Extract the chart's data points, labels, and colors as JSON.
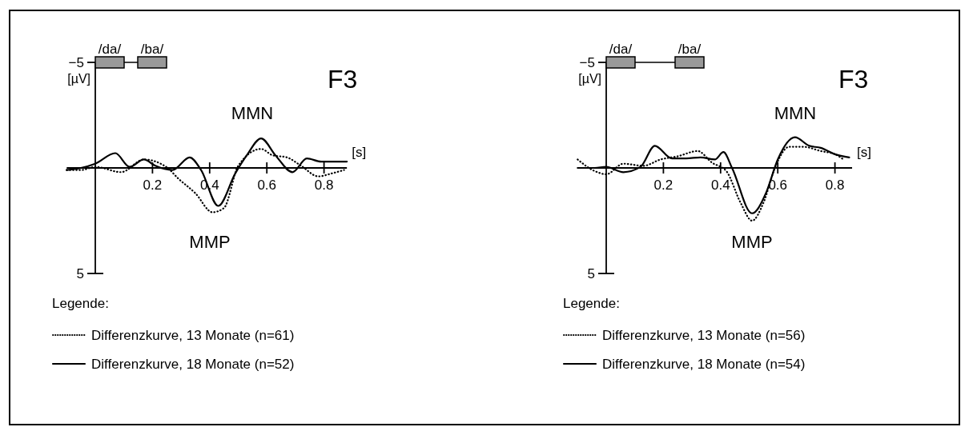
{
  "chart_data": [
    {
      "type": "line",
      "title": "F3",
      "xlabel": "[s]",
      "ylabel": "[µV]",
      "legend_title": "Legende:",
      "legend": "bottom",
      "xlim": [
        -0.1,
        0.88
      ],
      "xticks": [
        0.2,
        0.4,
        0.6,
        0.8
      ],
      "ylim": [
        5,
        -5
      ],
      "yticks": [
        {
          "value": -5,
          "label": "−5"
        },
        5
      ],
      "annotations": [
        "/da/",
        "/ba/",
        "MMN",
        "MMP"
      ],
      "series": [
        {
          "name": "Differenzkurve, 13 Monate (n=61)",
          "color": "#000000",
          "line_style": "dotted",
          "x": [
            -0.1,
            -0.05,
            0,
            0.09,
            0.17,
            0.25,
            0.29,
            0.35,
            0.41,
            0.45,
            0.5,
            0.58,
            0.62,
            0.67,
            0.72,
            0.78,
            0.83,
            0.87
          ],
          "values": [
            0.1,
            0.1,
            -0.05,
            0.2,
            -0.4,
            -0.03,
            0.5,
            1.2,
            2.1,
            1.9,
            -0.1,
            -0.9,
            -0.6,
            -0.5,
            -0.1,
            0.4,
            0.25,
            0.1
          ]
        },
        {
          "name": "Differenzkurve, 18 Monate (n=52)",
          "color": "#000000",
          "line_style": "solid",
          "x": [
            -0.1,
            -0.05,
            0,
            0.07,
            0.12,
            0.17,
            0.21,
            0.27,
            0.33,
            0.37,
            0.43,
            0.49,
            0.53,
            0.58,
            0.63,
            0.69,
            0.74,
            0.79,
            0.84,
            0.88
          ],
          "values": [
            0.1,
            0,
            -0.2,
            -0.7,
            -0.05,
            -0.4,
            -0.1,
            0.1,
            -0.5,
            0.1,
            1.8,
            0.25,
            -0.6,
            -1.4,
            -0.6,
            0.2,
            -0.45,
            -0.3,
            -0.3,
            -0.3
          ]
        }
      ]
    },
    {
      "type": "line",
      "title": "F3",
      "xlabel": "[s]",
      "ylabel": "[µV]",
      "legend_title": "Legende:",
      "legend": "bottom",
      "xlim": [
        -0.1,
        0.86
      ],
      "xticks": [
        0.2,
        0.4,
        0.6,
        0.8
      ],
      "ylim": [
        5,
        -5
      ],
      "yticks": [
        {
          "value": -5,
          "label": "−5"
        },
        5
      ],
      "annotations": [
        "/da/",
        "/ba/",
        "MMN",
        "MMP"
      ],
      "series": [
        {
          "name": "Differenzkurve, 13 Monate (n=56)",
          "color": "#000000",
          "line_style": "dotted",
          "x": [
            -0.1,
            -0.04,
            0,
            0.06,
            0.13,
            0.19,
            0.25,
            0.32,
            0.37,
            0.42,
            0.47,
            0.51,
            0.55,
            0.59,
            0.64,
            0.69,
            0.75,
            0.8,
            0.83
          ],
          "values": [
            -0.4,
            0.15,
            0.3,
            -0.2,
            -0.1,
            -0.4,
            -0.55,
            -0.8,
            -0.25,
            0.15,
            1.65,
            2.5,
            1.65,
            0,
            -1,
            -1,
            -0.8,
            -0.65,
            -0.4
          ]
        },
        {
          "name": "Differenzkurve, 18 Monate (n=54)",
          "color": "#000000",
          "line_style": "solid",
          "x": [
            -0.1,
            -0.04,
            0,
            0.06,
            0.12,
            0.17,
            0.23,
            0.28,
            0.33,
            0.38,
            0.41,
            0.44,
            0.51,
            0.56,
            0.6,
            0.66,
            0.71,
            0.75,
            0.8,
            0.85
          ],
          "values": [
            0,
            0,
            -0.05,
            0.2,
            -0.05,
            -1.05,
            -0.45,
            -0.45,
            -0.5,
            -0.4,
            -0.75,
            0,
            2.15,
            1.15,
            -0.4,
            -1.45,
            -1.05,
            -0.95,
            -0.65,
            -0.5
          ]
        }
      ]
    }
  ]
}
